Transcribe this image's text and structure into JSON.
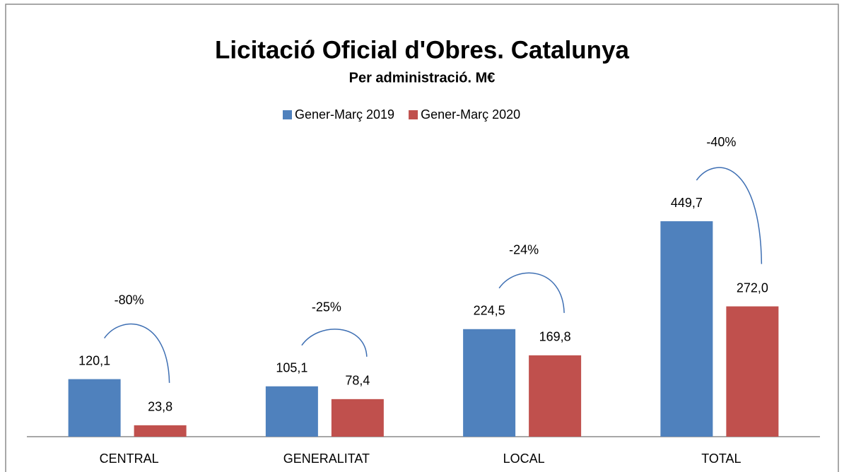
{
  "chart_data": {
    "type": "bar",
    "title": "Licitació Oficial d'Obres. Catalunya",
    "subtitle": "Per administració. M€",
    "categories": [
      "CENTRAL",
      "GENERALITAT",
      "LOCAL",
      "TOTAL"
    ],
    "series": [
      {
        "name": "Gener-Març 2019",
        "color": "#4f81bd",
        "values": [
          120.1,
          105.1,
          224.5,
          449.7
        ],
        "value_labels": [
          "120,1",
          "105,1",
          "224,5",
          "449,7"
        ]
      },
      {
        "name": "Gener-Març 2020",
        "color": "#c0504d",
        "values": [
          23.8,
          78.4,
          169.8,
          272.0
        ],
        "value_labels": [
          "23,8",
          "78,4",
          "169,8",
          "272,0"
        ]
      }
    ],
    "annotations": [
      "-80%",
      "-25%",
      "-24%",
      "-40%"
    ],
    "ylim": [
      0,
      500
    ],
    "legend": "top"
  }
}
